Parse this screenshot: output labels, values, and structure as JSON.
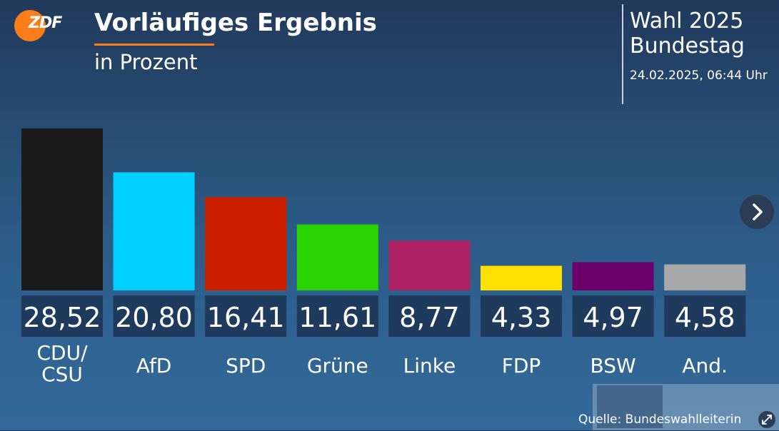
{
  "header": {
    "logo": "ZDF",
    "title": "Vorläufiges Ergebnis",
    "subtitle": "in Prozent",
    "election_line1": "Wahl 2025",
    "election_line2": "Bundestag",
    "timestamp": "24.02.2025, 06:44 Uhr"
  },
  "footer": {
    "source": "Quelle: Bundeswahlleiterin"
  },
  "colors": {
    "accent": "#fa7d19",
    "value_box": "#1e3a5c"
  },
  "icons": {
    "next": "chevron-right-icon",
    "expand": "expand-icon"
  },
  "chart_data": {
    "type": "bar",
    "categories": [
      "CDU/\nCSU",
      "AfD",
      "SPD",
      "Grüne",
      "Linke",
      "FDP",
      "BSW",
      "And."
    ],
    "values": [
      28.52,
      20.8,
      16.41,
      11.61,
      8.77,
      4.33,
      4.97,
      4.58
    ],
    "value_labels": [
      "28,52",
      "20,80",
      "16,41",
      "11,61",
      "8,77",
      "4,33",
      "4,97",
      "4,58"
    ],
    "colors": [
      "#1a1a1a",
      "#00d2ff",
      "#cc1f00",
      "#2ad402",
      "#b02266",
      "#ffe000",
      "#6b006b",
      "#a8a8a8"
    ],
    "unit": "Prozent"
  }
}
